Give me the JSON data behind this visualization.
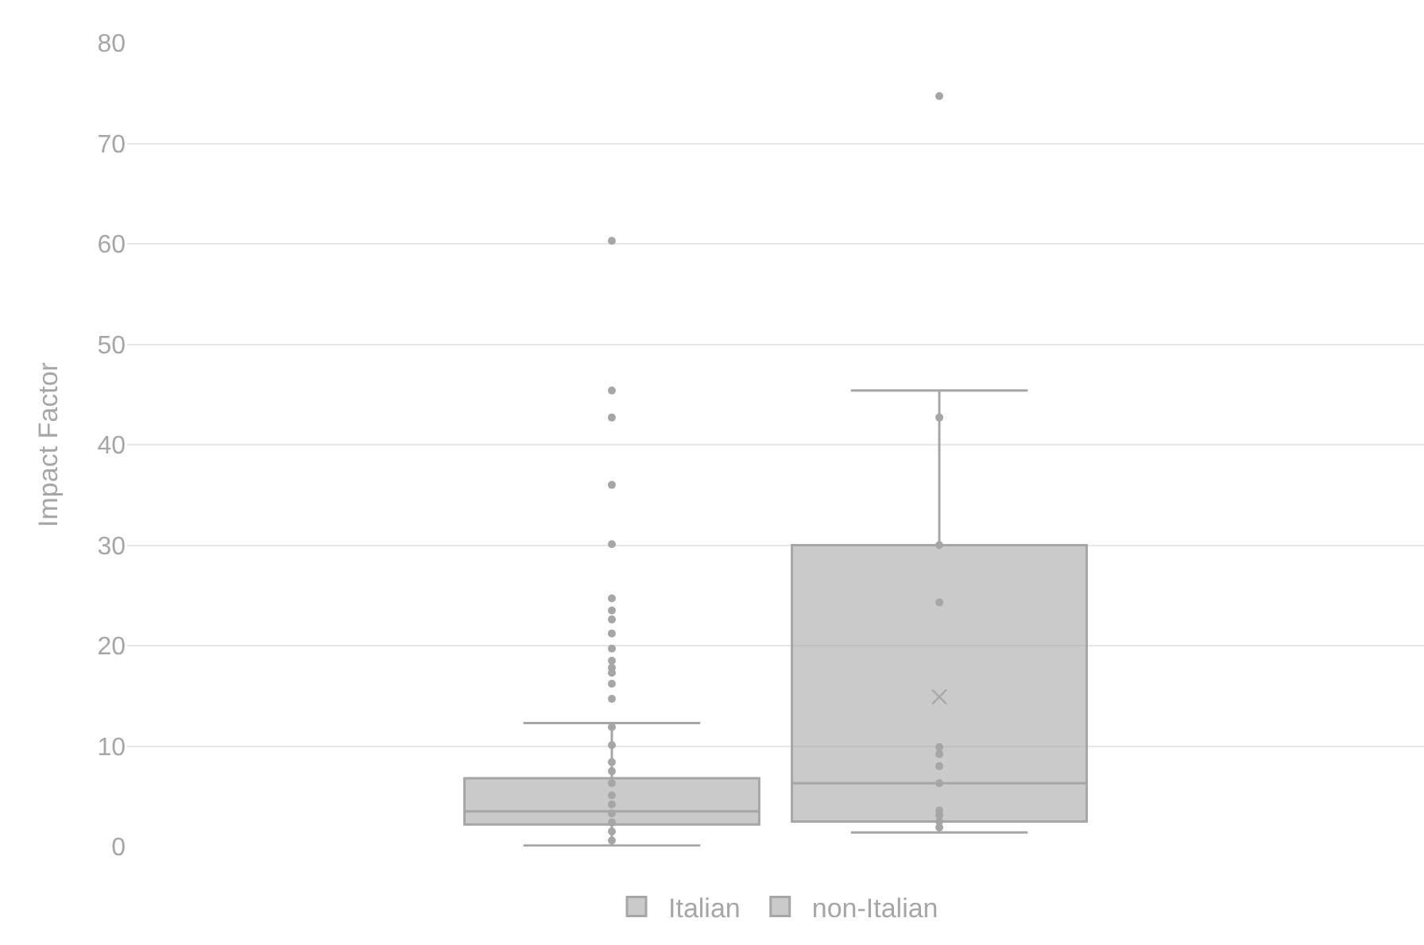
{
  "chart_data": {
    "type": "box",
    "ylabel": "Impact Factor",
    "categories": [
      null
    ],
    "ylim": [
      0,
      80
    ],
    "yticks": [
      0,
      10,
      20,
      30,
      40,
      50,
      60,
      70,
      80
    ],
    "grid": "y",
    "legend": "bottom",
    "tick_labels": "y",
    "series": [
      {
        "name": "Italian",
        "color": "#a6a6a6",
        "boxes": [
          {
            "low": 0.1,
            "q1": 2.2,
            "median": 3.5,
            "q3": 6.8,
            "high": 12.3,
            "outliers": [
              60.3,
              45.4,
              42.7,
              36.0,
              30.1,
              24.7,
              23.5,
              22.6,
              21.2,
              19.7,
              18.5,
              17.8,
              17.3,
              16.2,
              14.7,
              11.9,
              10.1,
              8.4,
              7.5,
              6.3,
              5.1,
              4.2,
              3.3,
              2.4,
              1.5,
              0.6
            ]
          }
        ]
      },
      {
        "name": "non-Italian",
        "color": "#a6a6a6",
        "boxes": [
          {
            "low": 1.4,
            "q1": 2.5,
            "median": 6.3,
            "q3": 30.0,
            "high": 45.4,
            "mean": 14.9,
            "outliers": [
              74.7,
              42.7,
              30.0,
              24.3,
              9.9,
              9.2,
              8.0,
              6.3,
              3.6,
              3.1,
              2.5,
              1.9
            ]
          }
        ]
      }
    ]
  }
}
